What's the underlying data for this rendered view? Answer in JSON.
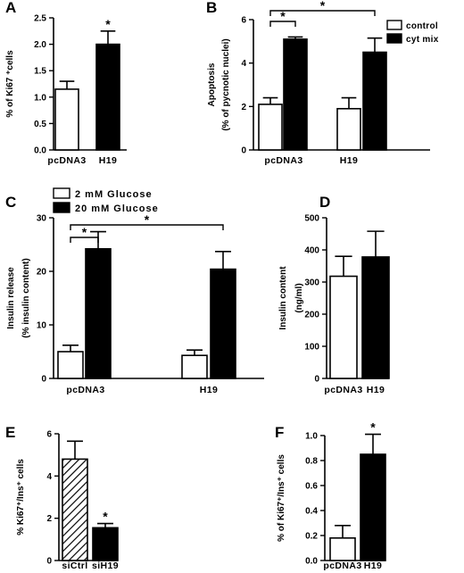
{
  "figure": {
    "panels": [
      "A",
      "B",
      "C",
      "D",
      "E",
      "F"
    ]
  },
  "colors": {
    "white_fill": "#ffffff",
    "black_fill": "#000000",
    "hatch": "#000000"
  },
  "chart_data": [
    {
      "panel": "A",
      "type": "bar",
      "categories": [
        "pcDNA3",
        "H19"
      ],
      "values": [
        1.15,
        2.0
      ],
      "errors": [
        0.15,
        0.25
      ],
      "fills": [
        "white",
        "black"
      ],
      "ylabel": "% of Ki67 ⁺cells",
      "ylim": [
        0,
        2.5
      ],
      "yticks": [
        "0.0",
        "0.5",
        "1.0",
        "1.5",
        "2.0",
        "2.5"
      ],
      "annotations": [
        {
          "category": "H19",
          "text": "*"
        }
      ]
    },
    {
      "panel": "B",
      "type": "bar",
      "categories": [
        "pcDNA3",
        "H19"
      ],
      "series": [
        {
          "name": "control",
          "fill": "white",
          "values": [
            2.1,
            1.9
          ],
          "errors": [
            0.3,
            0.5
          ]
        },
        {
          "name": "cyt mix",
          "fill": "black",
          "values": [
            5.1,
            4.5
          ],
          "errors": [
            0.1,
            0.65
          ]
        }
      ],
      "ylabel": "Apoptosis",
      "ylabel2": "(% of pycnotic nuclei)",
      "ylim": [
        0,
        6
      ],
      "yticks": [
        "0",
        "2",
        "4",
        "6"
      ],
      "legend_position": "top-right",
      "brackets": [
        {
          "from": "pcDNA3/control",
          "to": "pcDNA3/cyt mix",
          "text": "*"
        },
        {
          "from": "pcDNA3/control",
          "to": "H19/cyt mix",
          "text": "*"
        }
      ]
    },
    {
      "panel": "C",
      "type": "bar",
      "categories": [
        "pcDNA3",
        "H19"
      ],
      "series": [
        {
          "name": "2 mM Glucose",
          "fill": "white",
          "values": [
            5.0,
            4.3
          ],
          "errors": [
            1.2,
            1.0
          ]
        },
        {
          "name": "20 mM Glucose",
          "fill": "black",
          "values": [
            24.2,
            20.4
          ],
          "errors": [
            3.2,
            3.3
          ]
        }
      ],
      "ylabel": "Insulin release",
      "ylabel2": "(% insulin content)",
      "ylim": [
        0,
        30
      ],
      "yticks": [
        "0",
        "10",
        "20",
        "30"
      ],
      "legend_position": "top-left",
      "brackets": [
        {
          "from": "pcDNA3/2 mM Glucose",
          "to": "pcDNA3/20 mM Glucose",
          "text": "*"
        },
        {
          "from": "pcDNA3/2 mM Glucose",
          "to": "H19/20 mM Glucose",
          "text": "*"
        }
      ]
    },
    {
      "panel": "D",
      "type": "bar",
      "categories": [
        "pcDNA3",
        "H19"
      ],
      "values": [
        318,
        378
      ],
      "errors": [
        62,
        80
      ],
      "fills": [
        "white",
        "black"
      ],
      "ylabel": "Insulin content",
      "ylabel2": "(ng/ml)",
      "ylim": [
        0,
        500
      ],
      "yticks": [
        "0",
        "100",
        "200",
        "300",
        "400",
        "500"
      ]
    },
    {
      "panel": "E",
      "type": "bar",
      "categories": [
        "siCtrl",
        "siH19"
      ],
      "values": [
        4.8,
        1.55
      ],
      "errors": [
        0.85,
        0.2
      ],
      "fills": [
        "hatched",
        "black"
      ],
      "ylabel": "% Ki67⁺/Ins⁺ cells",
      "ylim": [
        0,
        6
      ],
      "yticks": [
        "0",
        "2",
        "4",
        "6"
      ],
      "annotations": [
        {
          "category": "siH19",
          "text": "*"
        }
      ]
    },
    {
      "panel": "F",
      "type": "bar",
      "categories": [
        "pcDNA3",
        "H19"
      ],
      "values": [
        0.18,
        0.85
      ],
      "errors": [
        0.1,
        0.16
      ],
      "fills": [
        "white",
        "black"
      ],
      "ylabel": "% of Ki67⁺/Ins⁺ cells",
      "ylim": [
        0,
        1.0
      ],
      "yticks": [
        "0.0",
        "0.2",
        "0.4",
        "0.6",
        "0.8",
        "1.0"
      ],
      "annotations": [
        {
          "category": "H19",
          "text": "*"
        }
      ]
    }
  ]
}
